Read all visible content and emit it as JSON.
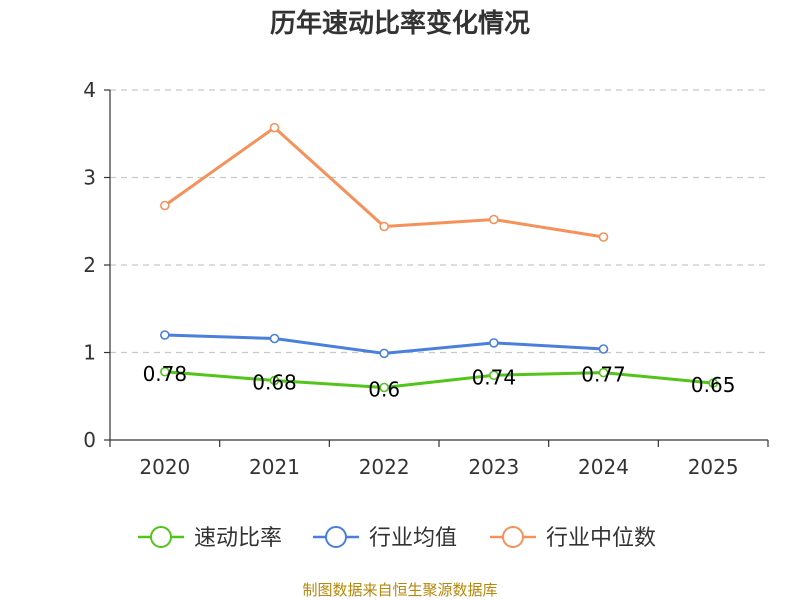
{
  "chart_data": {
    "type": "line",
    "title": "历年速动比率变化情况",
    "categories": [
      "2020",
      "2021",
      "2022",
      "2023",
      "2024",
      "2025"
    ],
    "ylim": [
      0,
      4
    ],
    "yticks": [
      0,
      1,
      2,
      3,
      4
    ],
    "grid": true,
    "legend_position": "bottom",
    "series": [
      {
        "name": "速动比率",
        "color": "#52c41a",
        "values": [
          0.78,
          0.68,
          0.6,
          0.74,
          0.77,
          0.65
        ],
        "labels": [
          "0.78",
          "0.68",
          "0.6",
          "0.74",
          "0.77",
          "0.65"
        ]
      },
      {
        "name": "行业均值",
        "color": "#4a7fdc",
        "values": [
          1.2,
          1.16,
          0.99,
          1.11,
          1.04,
          null
        ]
      },
      {
        "name": "行业中位数",
        "color": "#f5915a",
        "values": [
          2.68,
          3.57,
          2.44,
          2.52,
          2.32,
          null
        ]
      }
    ]
  },
  "source": "制图数据来自恒生聚源数据库"
}
